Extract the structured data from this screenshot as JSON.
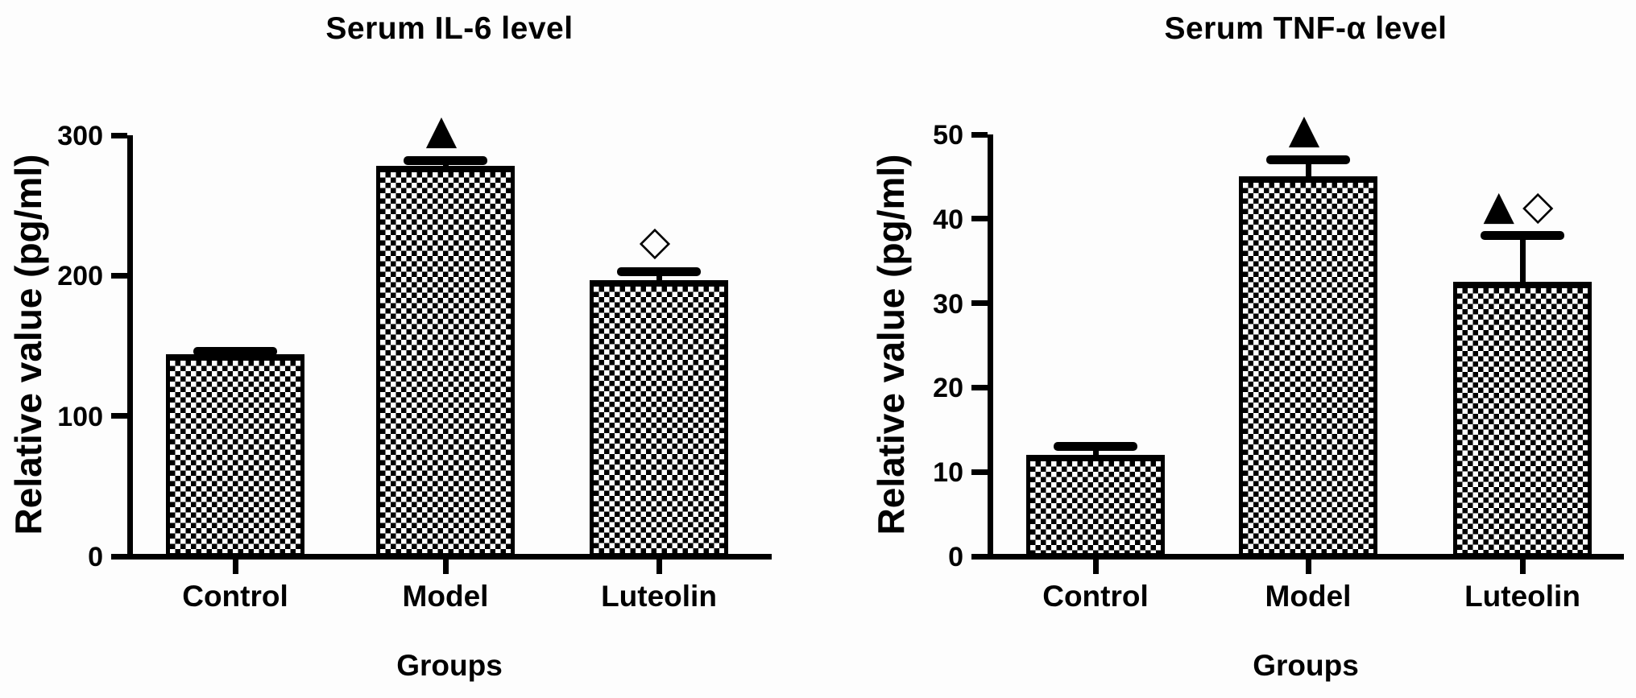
{
  "figure": {
    "background": "#fdfdfd",
    "ink_color": "#000000",
    "bar_fill": "black-white checkerboard hatch",
    "significance_symbols": [
      "▲",
      "◇"
    ]
  },
  "chart_data": [
    {
      "type": "bar",
      "title": "Serum IL-6 level",
      "xlabel": "Groups",
      "ylabel": "Relative value (pg/ml)",
      "categories": [
        "Control",
        "Model",
        "Luteolin"
      ],
      "values": [
        144,
        278,
        197
      ],
      "errors_plus": [
        2,
        4,
        6
      ],
      "error_style": "upper SEM bars with caps",
      "significance_markers": [
        "",
        "▲",
        "◇"
      ],
      "ylim": [
        0,
        300
      ],
      "yticks": [
        0,
        100,
        200,
        300
      ],
      "grid": false,
      "legend_position": "none",
      "bar_color": "checkerboard pattern, black outline"
    },
    {
      "type": "bar",
      "title": "Serum TNF-α level",
      "xlabel": "Groups",
      "ylabel": "Relative value (pg/ml)",
      "categories": [
        "Control",
        "Model",
        "Luteolin"
      ],
      "values": [
        12,
        45,
        32.5
      ],
      "errors_plus": [
        1,
        2,
        5.5
      ],
      "error_style": "upper SEM bars with caps",
      "significance_markers": [
        "",
        "▲",
        "▲◇"
      ],
      "ylim": [
        0,
        50
      ],
      "yticks": [
        0,
        10,
        20,
        30,
        40,
        50
      ],
      "grid": false,
      "legend_position": "none",
      "bar_color": "checkerboard pattern, black outline"
    }
  ]
}
